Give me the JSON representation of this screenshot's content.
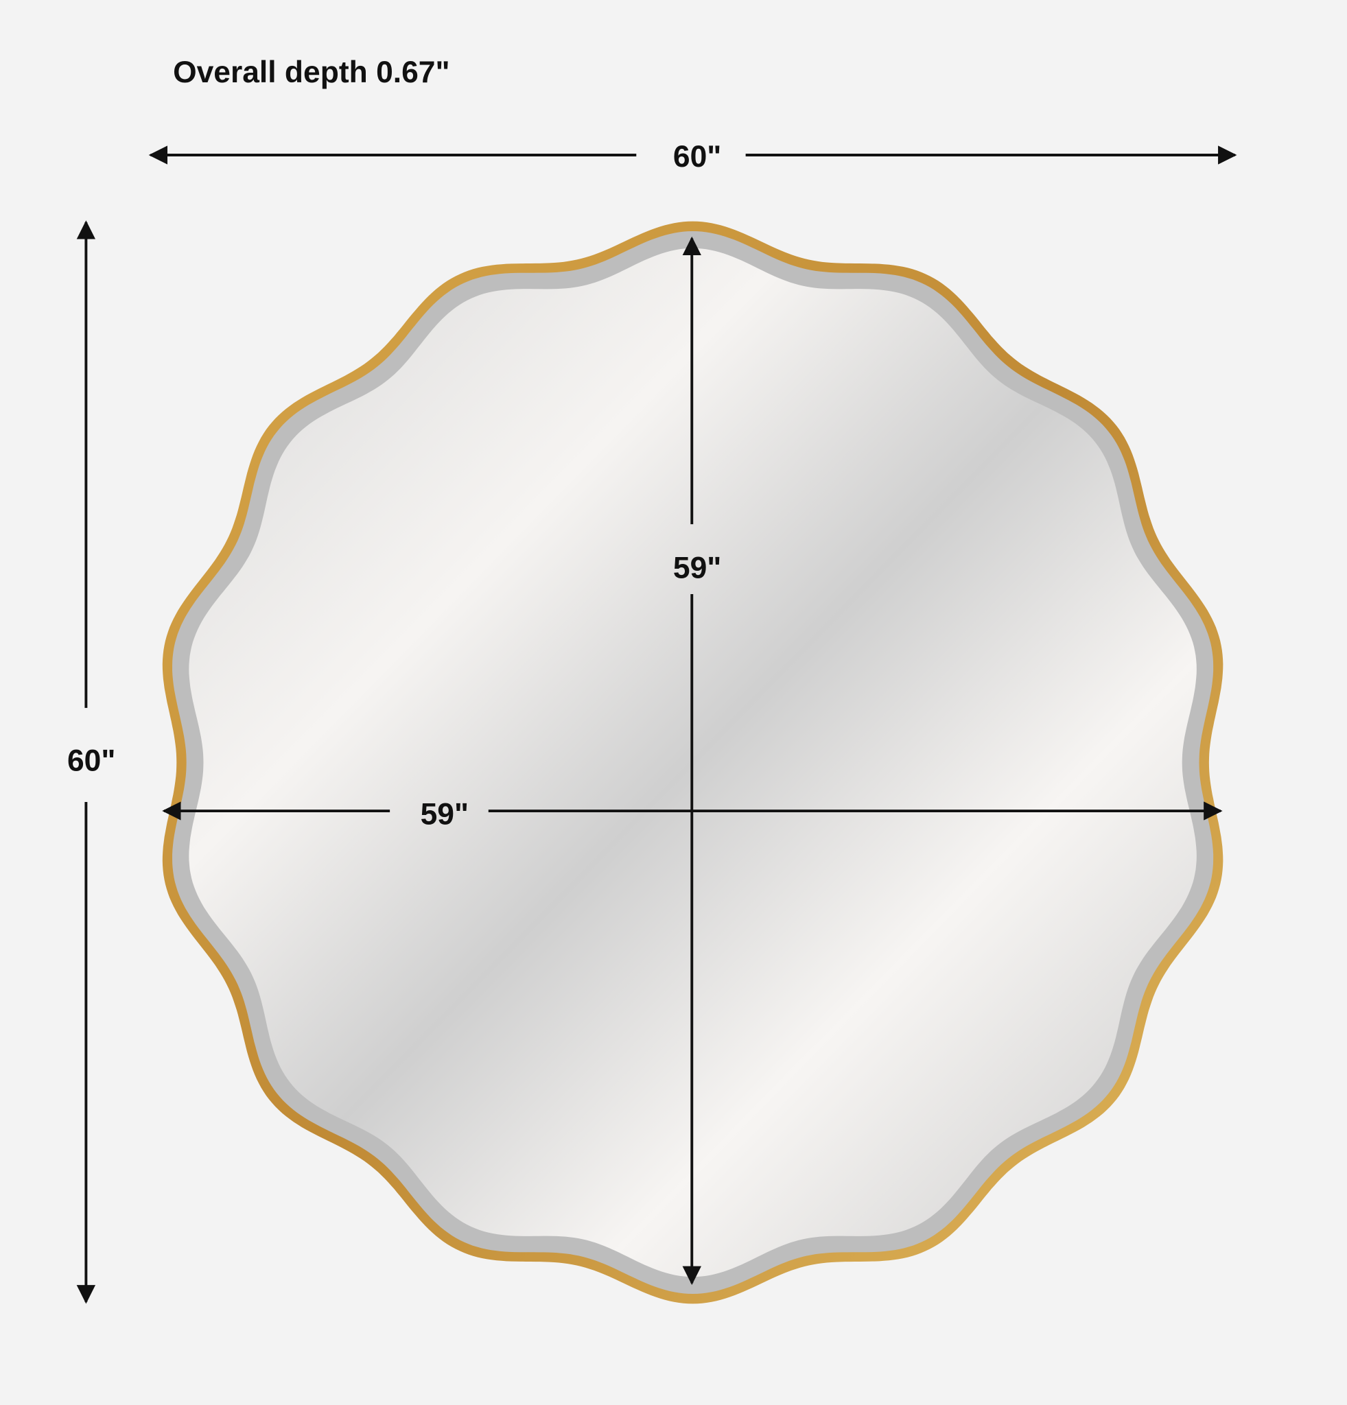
{
  "depth_label": "Overall depth 0.67\"",
  "dimensions": {
    "overall_width": "60\"",
    "overall_height": "60\"",
    "mirror_height": "59\"",
    "mirror_width": "59\""
  },
  "colors": {
    "background": "#f3f3f3",
    "frame_gold": "#c9973e",
    "mirror_glass": "#e6e6e6",
    "arrow": "#111111"
  }
}
